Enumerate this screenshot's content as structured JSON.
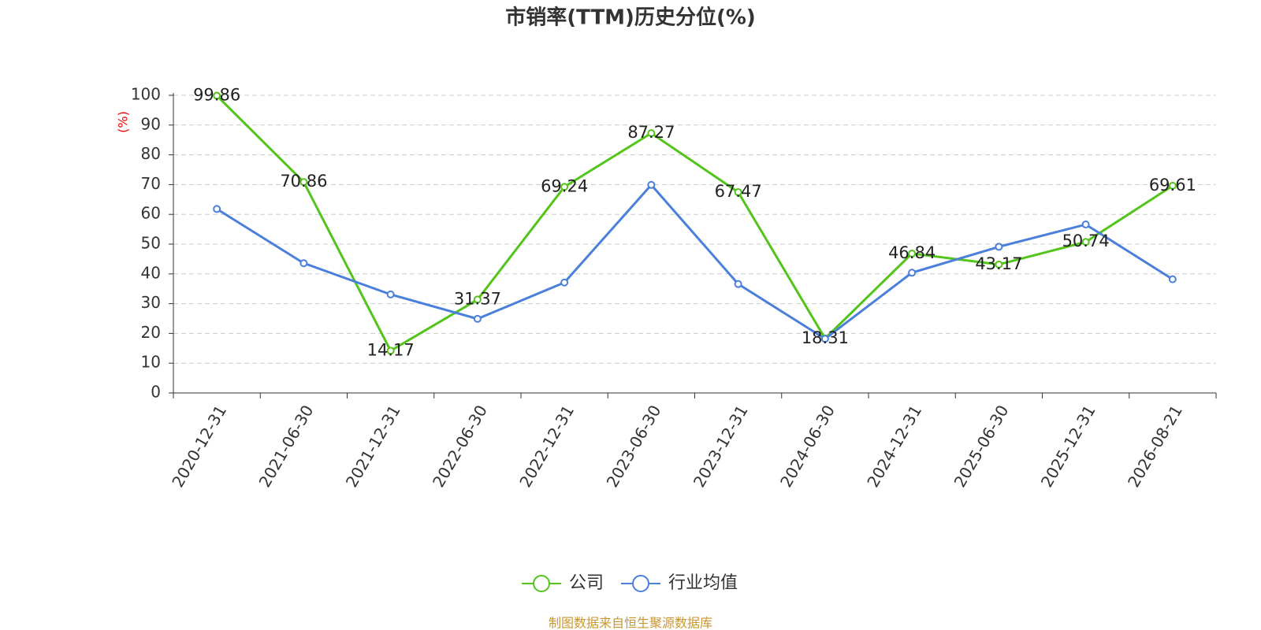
{
  "chart_data": {
    "type": "line",
    "title": "市销率(TTM)历史分位(%)",
    "y_label": "(%)",
    "source": "制图数据来自恒生聚源数据库",
    "categories": [
      "2020-12-31",
      "2021-06-30",
      "2021-12-31",
      "2022-06-30",
      "2022-12-31",
      "2023-06-30",
      "2023-12-31",
      "2024-06-30",
      "2024-12-31",
      "2025-06-30",
      "2025-12-31",
      "2026-08-21"
    ],
    "series": [
      {
        "name": "公司",
        "color": "#52c41a",
        "labels": true,
        "values": [
          99.86,
          70.86,
          14.17,
          31.37,
          69.24,
          87.27,
          67.47,
          18.31,
          46.84,
          43.17,
          50.74,
          69.61
        ]
      },
      {
        "name": "行业均值",
        "color": "#4a7fdc",
        "labels": false,
        "values": [
          61.8,
          43.6,
          33.1,
          24.9,
          37.1,
          69.9,
          36.6,
          18.2,
          40.4,
          49.1,
          56.6,
          38.2
        ]
      }
    ],
    "ylim": [
      0,
      100
    ],
    "yticks": [
      0,
      10,
      20,
      30,
      40,
      50,
      60,
      70,
      80,
      90,
      100
    ],
    "grid": true,
    "legend": "bottom"
  }
}
